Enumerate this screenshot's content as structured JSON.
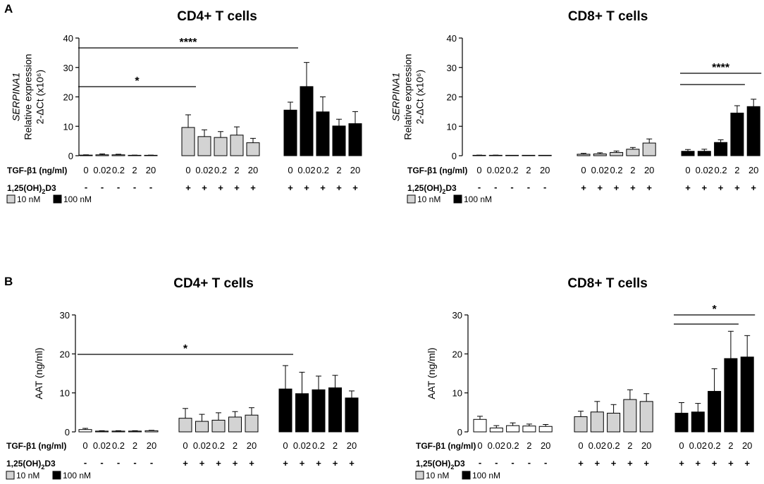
{
  "panels": {
    "A": "A",
    "B": "B"
  },
  "colors": {
    "untreated": "#ffffff",
    "low": "#d3d3d3",
    "high": "#000000",
    "stroke": "#000000"
  },
  "row_labels": {
    "tgf": "TGF-β1 (ng/ml)",
    "vitd_pre": "1,25(OH)",
    "vitd_sub": "2",
    "vitd_post": "D3"
  },
  "x_values": [
    "0",
    "0.02",
    "0.2",
    "2",
    "20",
    "0",
    "0.02",
    "0.2",
    "2",
    "20",
    "0",
    "0.02",
    "0.2",
    "2",
    "20"
  ],
  "vitd_signs": [
    "-",
    "-",
    "-",
    "-",
    "-",
    "+",
    "+",
    "+",
    "+",
    "+",
    "+",
    "+",
    "+",
    "+",
    "+"
  ],
  "legend": {
    "low": "10 nM",
    "high": "100 nM"
  },
  "chart_data": [
    {
      "type": "bar",
      "panel": "A",
      "title": "CD4+ T cells",
      "ylabel_lines": [
        "SERPINA1",
        "Relative expression",
        "2-ΔCt (x10⁶)"
      ],
      "yticks": [
        "0",
        "10",
        "20",
        "30",
        "40"
      ],
      "ylim": [
        0,
        40
      ],
      "groups": [
        {
          "dose": "none",
          "values": [
            0.2,
            0.3,
            0.3,
            0.1,
            0.1
          ],
          "errors": [
            0.1,
            0.3,
            0.2,
            0.1,
            0.1
          ]
        },
        {
          "dose": "10 nM",
          "values": [
            9.6,
            6.5,
            6.2,
            7.0,
            4.4
          ],
          "errors": [
            4.3,
            2.3,
            2.0,
            2.8,
            1.5
          ]
        },
        {
          "dose": "100 nM",
          "values": [
            15.5,
            23.5,
            14.9,
            10.1,
            10.9
          ],
          "errors": [
            2.7,
            8.2,
            5.1,
            2.3,
            4.1
          ]
        }
      ],
      "significance": [
        {
          "label": "*",
          "from": 0,
          "to": 5
        },
        {
          "label": "****",
          "from": 0,
          "to": 10
        }
      ]
    },
    {
      "type": "bar",
      "panel": "A",
      "title": "CD8+ T cells",
      "ylabel_lines": [
        "SERPINA1",
        "Relative expression",
        "2-ΔCt (x10⁶)"
      ],
      "yticks": [
        "0",
        "10",
        "20",
        "30",
        "40"
      ],
      "ylim": [
        0,
        40
      ],
      "groups": [
        {
          "dose": "none",
          "values": [
            0.1,
            0.1,
            0.0,
            0.0,
            0.0
          ],
          "errors": [
            0.1,
            0.1,
            0.0,
            0.0,
            0.0
          ]
        },
        {
          "dose": "10 nM",
          "values": [
            0.5,
            0.6,
            1.1,
            2.2,
            4.3
          ],
          "errors": [
            0.3,
            0.4,
            0.5,
            0.6,
            1.4
          ]
        },
        {
          "dose": "100 nM",
          "values": [
            1.5,
            1.5,
            4.5,
            14.5,
            16.7
          ],
          "errors": [
            0.6,
            0.7,
            0.9,
            2.5,
            2.5
          ]
        }
      ],
      "significance": [
        {
          "label": "",
          "from": 10,
          "to": 13
        },
        {
          "label": "****",
          "from": 10,
          "to": 14
        }
      ]
    },
    {
      "type": "bar",
      "panel": "B",
      "title": "CD4+ T cells",
      "ylabel_lines": [
        "AAT (ng/ml)"
      ],
      "yticks": [
        "0",
        "10",
        "20",
        "30"
      ],
      "ylim": [
        0,
        30
      ],
      "groups": [
        {
          "dose": "none",
          "values": [
            0.6,
            0.2,
            0.2,
            0.2,
            0.3
          ],
          "errors": [
            0.3,
            0.1,
            0.1,
            0.1,
            0.1
          ]
        },
        {
          "dose": "10 nM",
          "values": [
            3.5,
            2.7,
            3.0,
            3.8,
            4.3
          ],
          "errors": [
            2.5,
            1.8,
            1.9,
            1.4,
            1.9
          ]
        },
        {
          "dose": "100 nM",
          "values": [
            11.0,
            9.8,
            10.8,
            11.3,
            8.7
          ],
          "errors": [
            6.0,
            5.5,
            3.5,
            3.2,
            1.8
          ]
        }
      ],
      "significance": [
        {
          "label": "*",
          "from": 0,
          "to": 10
        }
      ]
    },
    {
      "type": "bar",
      "panel": "B",
      "title": "CD8+ T cells",
      "ylabel_lines": [
        "AAT (ng/ml)"
      ],
      "yticks": [
        "0",
        "10",
        "20",
        "30"
      ],
      "ylim": [
        0,
        30
      ],
      "groups": [
        {
          "dose": "none",
          "values": [
            3.2,
            1.0,
            1.6,
            1.5,
            1.4
          ],
          "errors": [
            0.8,
            0.6,
            0.7,
            0.5,
            0.5
          ]
        },
        {
          "dose": "10 nM",
          "values": [
            3.9,
            5.1,
            4.8,
            8.3,
            7.8
          ],
          "errors": [
            1.4,
            2.7,
            2.2,
            2.5,
            2.0
          ]
        },
        {
          "dose": "100 nM",
          "values": [
            4.8,
            5.1,
            10.4,
            18.8,
            19.2
          ],
          "errors": [
            2.7,
            2.2,
            5.8,
            7.0,
            5.5
          ]
        }
      ],
      "significance": [
        {
          "label": "",
          "from": 10,
          "to": 13
        },
        {
          "label": "*",
          "from": 10,
          "to": 14
        }
      ]
    }
  ]
}
